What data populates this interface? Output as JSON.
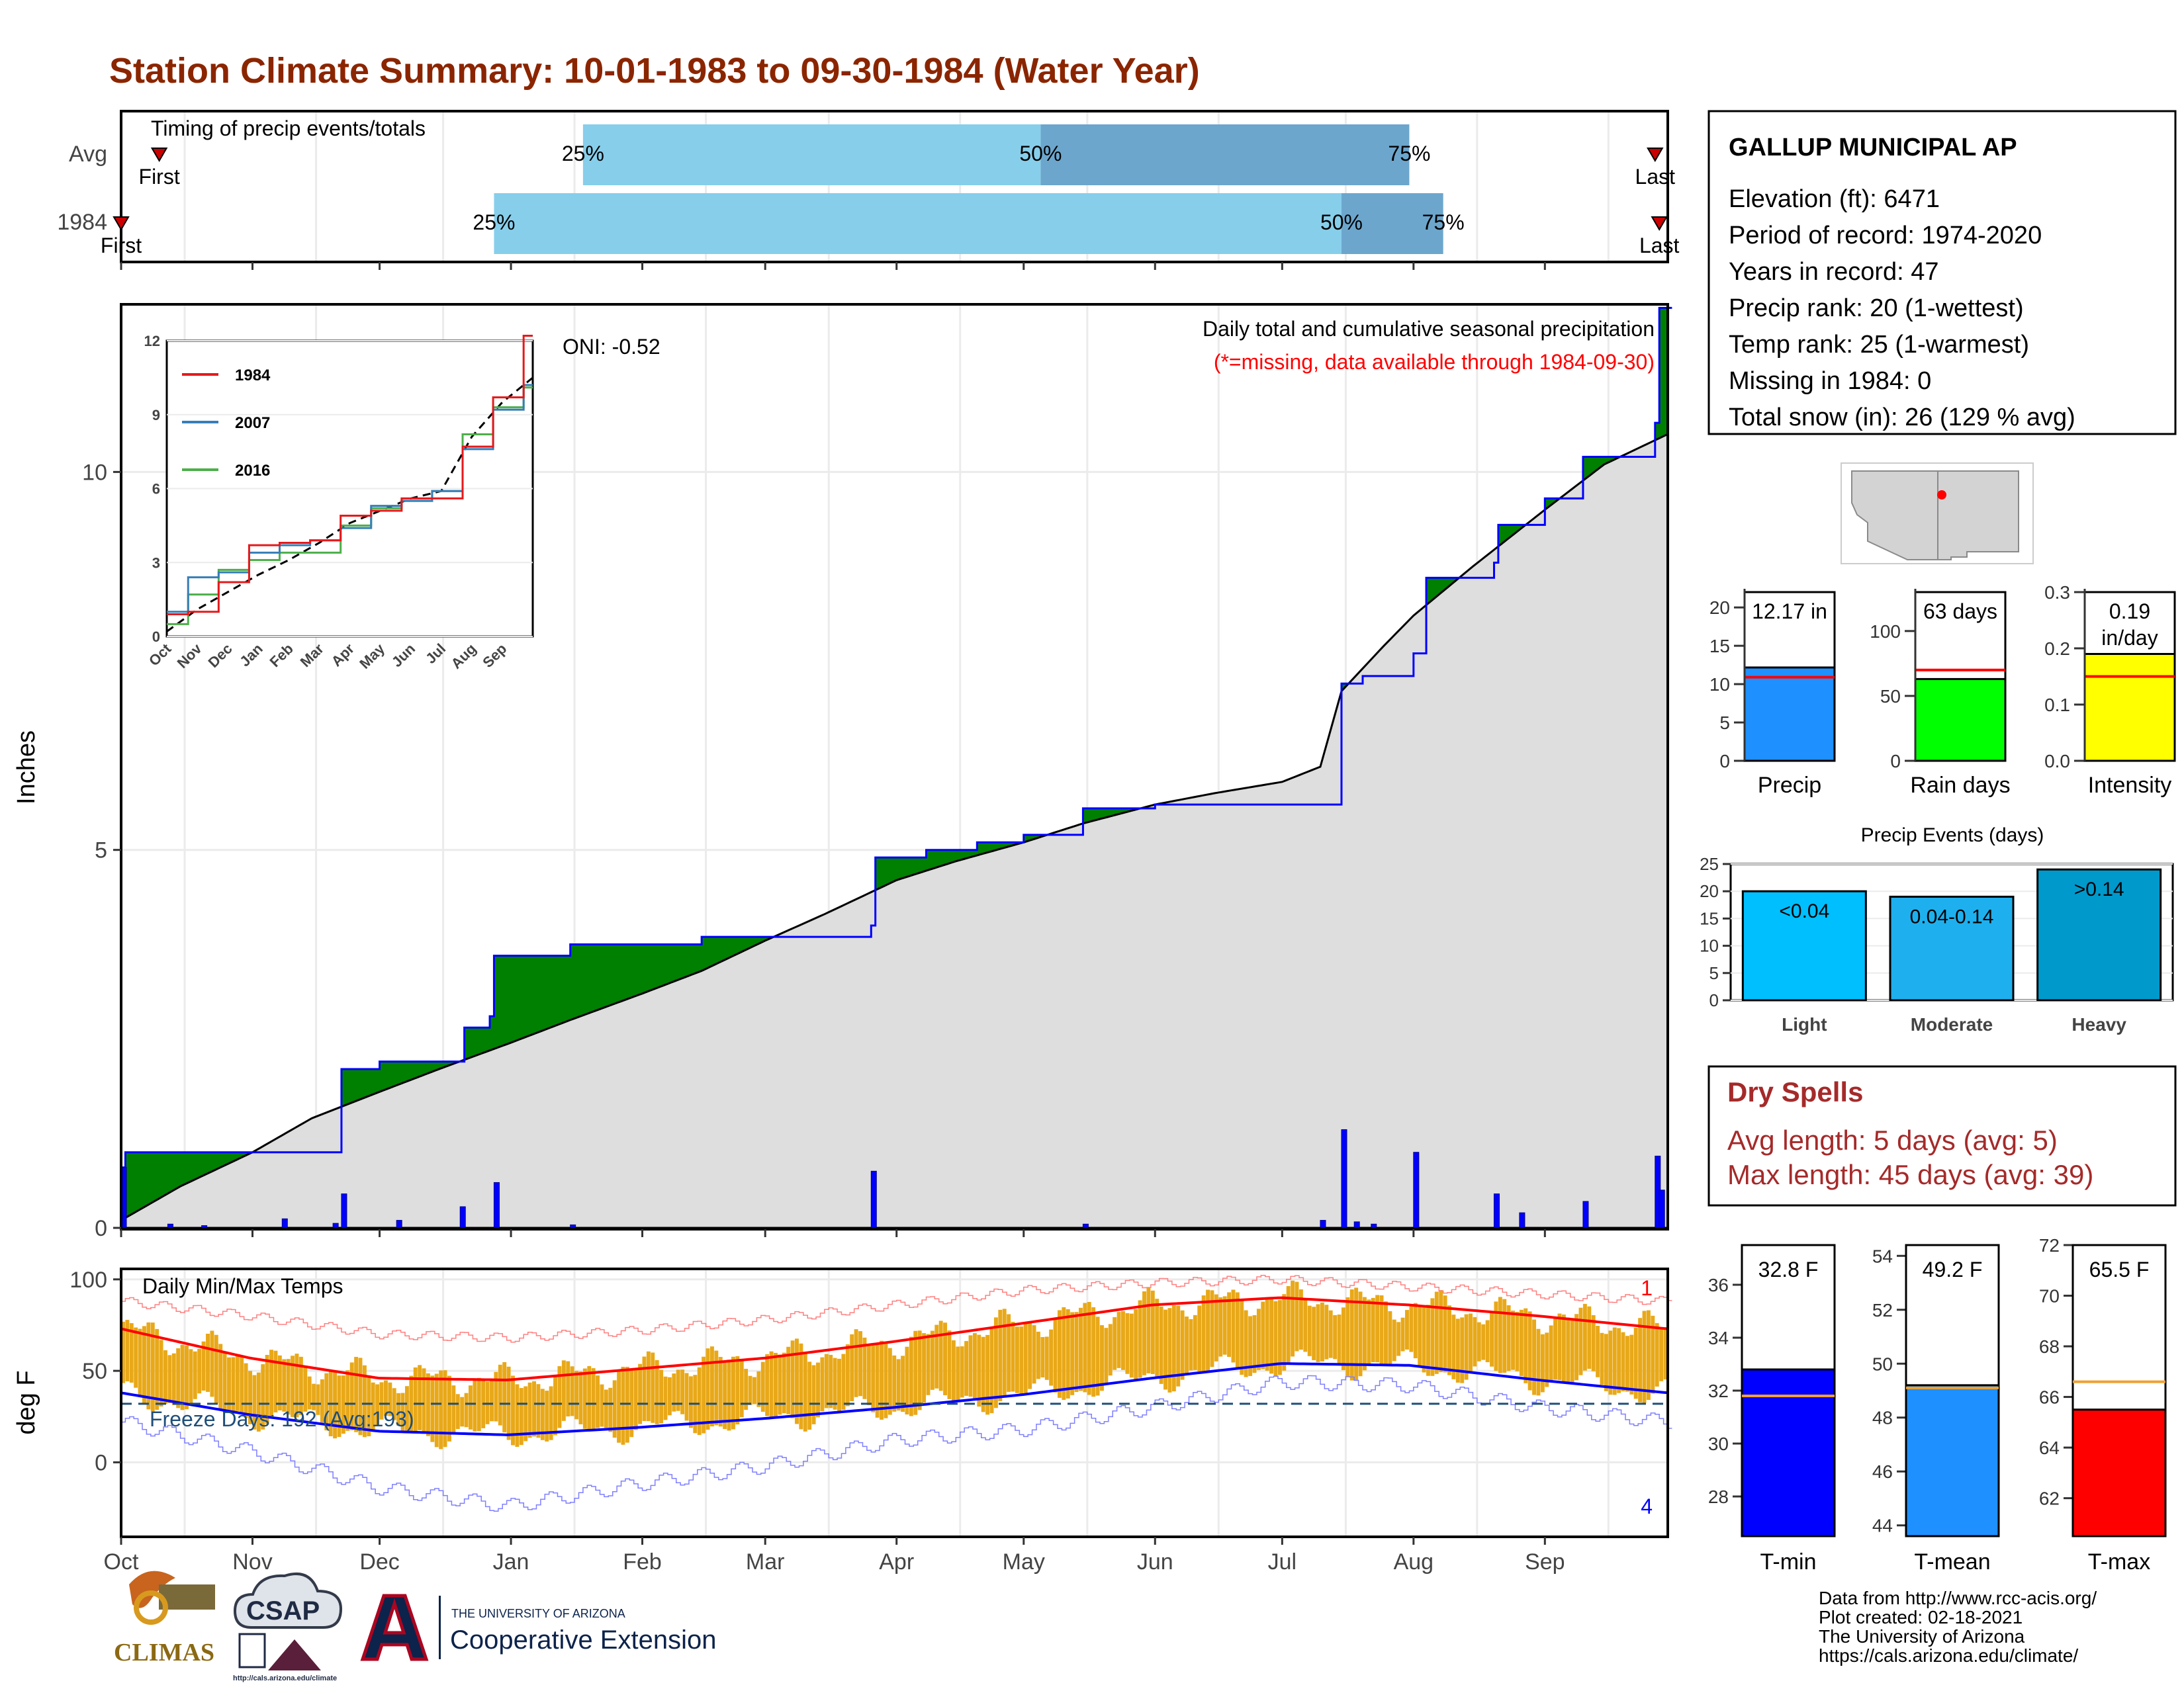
{
  "page": {
    "title": "Station Climate Summary: 10-01-1983 to 09-30-1984 (Water Year)",
    "footer": [
      "Data from http://www.rcc-acis.org/",
      "Plot created: 02-18-2021",
      "The University of Arizona",
      "https://cals.arizona.edu/climate/"
    ],
    "logos": {
      "climas": "CLIMAS",
      "csap": "CSAP",
      "csap_url": "http://cals.arizona.edu/climate",
      "ua_small": "THE UNIVERSITY OF ARIZONA",
      "ua_big": "Cooperative Extension"
    }
  },
  "colors": {
    "title": "#8b2500",
    "green_surplus": "#008000",
    "brown_deficit": "#8b5a14",
    "light_blue": "#87ceeb",
    "mid_blue": "#6ca6cd",
    "precip_bar": "#1e90ff",
    "rain_bar": "#00ff00",
    "intensity_bar": "#ffff00",
    "tmin_bar": "#0000ff",
    "tmean_bar": "#1e90ff",
    "tmax_bar": "#ff0000",
    "temp_range": "#e8a818",
    "dry_spell_text": "#a52a2a"
  },
  "station": {
    "name": "GALLUP MUNICIPAL AP",
    "lines": [
      "Elevation (ft): 6471",
      "Period of record: 1974-2020",
      "Years in record: 47",
      "Precip rank: 20 (1-wettest)",
      "Temp rank: 25 (1-warmest)",
      "Missing in 1984: 0",
      "Total snow (in): 26 (129 % avg)"
    ]
  },
  "dry_spells": {
    "title": "Dry Spells",
    "avg_length": "Avg length: 5 days (avg: 5)",
    "max_length": "Max length: 45 days (avg: 39)"
  },
  "chart_data": [
    {
      "id": "timing",
      "type": "bar",
      "subtitle": "Timing of precip events/totals",
      "rows": [
        {
          "label": "Avg",
          "first": "First",
          "last": "Last",
          "first_date": "1983-10-10",
          "last_date": "1984-09-27",
          "p25_date": "1984-01-18",
          "p50_date": "1984-05-05",
          "p75_date": "1984-07-31"
        },
        {
          "label": "1984",
          "first": "First",
          "last": "Last",
          "first_date": "1983-10-01",
          "last_date": "1984-09-28",
          "p25_date": "1983-12-28",
          "p50_date": "1984-07-15",
          "p75_date": "1984-08-08"
        }
      ],
      "pct_labels": [
        "25%",
        "50%",
        "75%"
      ]
    },
    {
      "id": "precip",
      "type": "area",
      "title": "Daily total and cumulative seasonal precipitation",
      "note": "(*=missing, data available through 1984-09-30)",
      "ylabel": "Inches",
      "ylim": [
        0,
        12.2
      ],
      "yticks": [
        0,
        5,
        10
      ],
      "oni": "ONI: -0.52",
      "months": [
        "Oct",
        "Nov",
        "Dec",
        "Jan",
        "Feb",
        "Mar",
        "Apr",
        "May",
        "Jun",
        "Jul",
        "Aug",
        "Sep"
      ],
      "avg_cumulative": {
        "dates": [
          "1983-10-01",
          "1983-10-15",
          "1983-11-01",
          "1983-11-15",
          "1983-12-01",
          "1983-12-15",
          "1984-01-01",
          "1984-01-15",
          "1984-02-01",
          "1984-02-15",
          "1984-03-01",
          "1984-03-15",
          "1984-04-01",
          "1984-04-15",
          "1984-05-01",
          "1984-05-15",
          "1984-06-01",
          "1984-06-15",
          "1984-07-01",
          "1984-07-10",
          "1984-07-15",
          "1984-07-25",
          "1984-08-01",
          "1984-08-15",
          "1984-09-01",
          "1984-09-15",
          "1984-09-30"
        ],
        "values": [
          0.1,
          0.55,
          1.0,
          1.45,
          1.8,
          2.1,
          2.45,
          2.75,
          3.1,
          3.4,
          3.8,
          4.15,
          4.6,
          4.85,
          5.1,
          5.35,
          5.6,
          5.75,
          5.9,
          6.1,
          7.1,
          7.7,
          8.1,
          8.75,
          9.5,
          10.1,
          10.5
        ]
      },
      "cumulative_1984": {
        "dates": [
          "1983-10-01",
          "1983-10-02",
          "1983-11-01",
          "1983-11-21",
          "1983-11-22",
          "1983-12-01",
          "1983-12-20",
          "1983-12-21",
          "1983-12-27",
          "1983-12-28",
          "1984-01-15",
          "1984-02-15",
          "1984-03-01",
          "1984-03-26",
          "1984-03-27",
          "1984-04-08",
          "1984-04-20",
          "1984-05-01",
          "1984-05-15",
          "1984-06-01",
          "1984-06-15",
          "1984-07-14",
          "1984-07-15",
          "1984-07-20",
          "1984-07-28",
          "1984-08-01",
          "1984-08-04",
          "1984-08-20",
          "1984-08-21",
          "1984-09-01",
          "1984-09-10",
          "1984-09-27",
          "1984-09-28",
          "1984-09-30"
        ],
        "values": [
          0.8,
          1.0,
          1.0,
          1.0,
          2.1,
          2.2,
          2.2,
          2.65,
          2.8,
          3.6,
          3.75,
          3.85,
          3.85,
          4.0,
          4.9,
          5.0,
          5.1,
          5.2,
          5.55,
          5.6,
          5.6,
          5.6,
          7.2,
          7.3,
          7.3,
          7.6,
          8.6,
          8.8,
          9.3,
          9.65,
          10.2,
          10.65,
          12.17,
          12.17
        ]
      },
      "daily_bars": {
        "dates": [
          "1983-10-01",
          "1983-10-12",
          "1983-10-20",
          "1983-11-08",
          "1983-11-20",
          "1983-11-22",
          "1983-12-05",
          "1983-12-20",
          "1983-12-28",
          "1984-01-15",
          "1984-03-26",
          "1984-05-15",
          "1984-07-10",
          "1984-07-15",
          "1984-07-18",
          "1984-07-22",
          "1984-08-01",
          "1984-08-20",
          "1984-08-26",
          "1984-09-10",
          "1984-09-27",
          "1984-09-28"
        ],
        "values": [
          0.8,
          0.05,
          0.03,
          0.12,
          0.06,
          0.45,
          0.1,
          0.28,
          0.6,
          0.04,
          0.75,
          0.05,
          0.1,
          1.3,
          0.08,
          0.05,
          1.0,
          0.45,
          0.2,
          0.35,
          0.95,
          0.5
        ]
      },
      "inset": {
        "type": "line",
        "ylim": [
          0,
          12
        ],
        "yticks": [
          0,
          3,
          6,
          9,
          12
        ],
        "xticks": [
          "Oct",
          "Nov",
          "Dec",
          "Jan",
          "Feb",
          "Mar",
          "Apr",
          "May",
          "Jun",
          "Jul",
          "Aug",
          "Sep"
        ],
        "series": [
          {
            "name": "1984",
            "color": "#e41a1c",
            "values": [
              0.9,
              1.0,
              2.2,
              3.7,
              3.8,
              3.9,
              4.9,
              5.1,
              5.6,
              5.6,
              7.7,
              9.7,
              12.2
            ]
          },
          {
            "name": "2007",
            "color": "#377eb8",
            "values": [
              1.0,
              2.4,
              2.6,
              3.4,
              3.7,
              3.9,
              4.4,
              5.3,
              5.5,
              5.9,
              7.6,
              9.2,
              10.2
            ]
          },
          {
            "name": "2016",
            "color": "#4daf4a",
            "values": [
              0.5,
              1.7,
              2.7,
              3.1,
              3.4,
              3.4,
              4.5,
              5.2,
              5.5,
              5.9,
              8.2,
              9.3,
              10.1
            ]
          }
        ],
        "avg": [
          0.2,
          1.1,
          1.8,
          2.5,
          3.1,
          3.8,
          4.6,
          5.1,
          5.6,
          5.9,
          8.1,
          9.5,
          10.5
        ]
      }
    },
    {
      "id": "temps",
      "type": "line",
      "subtitle": "Daily Min/Max Temps",
      "ylabel": "deg F",
      "ylim": [
        -40,
        105
      ],
      "yticks": [
        0,
        50,
        100
      ],
      "freeze": "Freeze Days: 192 (Avg:193)",
      "freeze_line": 32,
      "record_high_count": "1",
      "record_low_count": "4",
      "normals": {
        "months": [
          "Oct",
          "Nov",
          "Dec",
          "Jan",
          "Feb",
          "Mar",
          "Apr",
          "May",
          "Jun",
          "Jul",
          "Aug",
          "Sep",
          "Oct"
        ],
        "max": [
          73,
          57,
          46,
          45,
          51,
          57,
          66,
          76,
          86,
          90,
          86,
          80,
          73
        ],
        "min": [
          38,
          26,
          17,
          15,
          19,
          24,
          30,
          37,
          46,
          54,
          53,
          45,
          38
        ],
        "max_record": [
          88,
          80,
          70,
          68,
          72,
          78,
          86,
          94,
          98,
          100,
          96,
          92,
          88
        ],
        "min_record": [
          22,
          6,
          -14,
          -24,
          -12,
          -2,
          12,
          18,
          30,
          44,
          42,
          30,
          22
        ]
      }
    },
    {
      "id": "summary_bars",
      "type": "bar",
      "panels": [
        {
          "name": "Precip",
          "value": 12.17,
          "avg": 10.9,
          "ylim": [
            0,
            22
          ],
          "yticks": [
            0,
            5,
            10,
            15,
            20
          ],
          "label1": "12.17 in",
          "label2": ""
        },
        {
          "name": "Rain days",
          "value": 63,
          "avg": 70,
          "ylim": [
            0,
            130
          ],
          "yticks": [
            0,
            50,
            100
          ],
          "label1": "63 days",
          "label2": ""
        },
        {
          "name": "Intensity",
          "value": 0.19,
          "avg": 0.15,
          "ylim": [
            0,
            0.3
          ],
          "yticks": [
            0.0,
            0.1,
            0.2,
            0.3
          ],
          "label1": "0.19",
          "label2": "in/day"
        }
      ]
    },
    {
      "id": "events",
      "type": "bar",
      "title": "Precip Events (days)",
      "ylim": [
        0,
        25
      ],
      "yticks": [
        0,
        5,
        10,
        15,
        20,
        25
      ],
      "categories": [
        "Light",
        "Moderate",
        "Heavy"
      ],
      "values": [
        20,
        19,
        24
      ],
      "bar_labels": [
        "<0.04",
        "0.04-0.14",
        ">0.14"
      ]
    },
    {
      "id": "temp_bars",
      "type": "bar",
      "panels": [
        {
          "name": "T-min",
          "value": 32.8,
          "avg": 31.8,
          "ylim": [
            26.5,
            37.5
          ],
          "yticks": [
            28,
            30,
            32,
            34,
            36
          ],
          "label": "32.8 F",
          "color": "#0000ff"
        },
        {
          "name": "T-mean",
          "value": 49.2,
          "avg": 49.1,
          "ylim": [
            43.6,
            54.4
          ],
          "yticks": [
            44,
            46,
            48,
            50,
            52,
            54
          ],
          "label": "49.2 F",
          "color": "#1e90ff"
        },
        {
          "name": "T-max",
          "value": 65.5,
          "avg": 66.6,
          "ylim": [
            60.5,
            72
          ],
          "yticks": [
            62,
            64,
            66,
            68,
            70,
            72
          ],
          "label": "65.5 F",
          "color": "#ff0000"
        }
      ]
    }
  ]
}
